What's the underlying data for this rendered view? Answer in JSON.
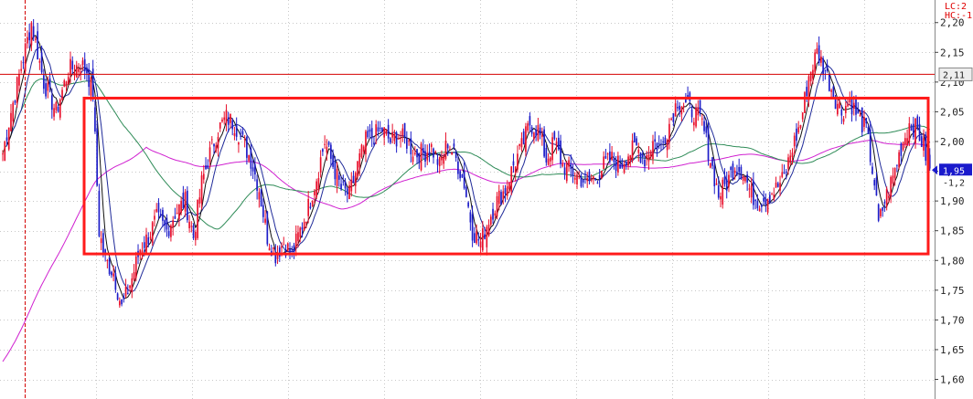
{
  "chart_data": {
    "type": "candlestick",
    "title": "",
    "legend": {
      "lc_text": "LC:2",
      "hc_text": "HC:-1"
    },
    "y_axis": {
      "ticks": [
        {
          "label": "1,60",
          "value": 1.6
        },
        {
          "label": "1,65",
          "value": 1.65
        },
        {
          "label": "1,70",
          "value": 1.7
        },
        {
          "label": "1,75",
          "value": 1.75
        },
        {
          "label": "1,80",
          "value": 1.8
        },
        {
          "label": "1,85",
          "value": 1.85
        },
        {
          "label": "1,90",
          "value": 1.9
        },
        {
          "label": "1,95",
          "value": 1.95
        },
        {
          "label": "2,00",
          "value": 2.0
        },
        {
          "label": "2,05",
          "value": 2.05
        },
        {
          "label": "2,10",
          "value": 2.1
        },
        {
          "label": "2,15",
          "value": 2.15
        },
        {
          "label": "2,20",
          "value": 2.2
        }
      ],
      "ylim": [
        1.567,
        2.238
      ],
      "grid": true
    },
    "reference_line": {
      "value": 2.113,
      "label": "2,11",
      "color": "#d40000"
    },
    "current_price": {
      "value": 1.952,
      "label": "1,95",
      "sub_label": "-1,2",
      "color": "#1a1acc"
    },
    "range_box": {
      "high": 2.073,
      "low": 1.811,
      "color": "#ff1a1a"
    },
    "colors": {
      "up": "#e8102c",
      "down": "#1c1cc8",
      "ma5": "#111111",
      "ma10": "#1f2a99",
      "ma60": "#2e8b57",
      "ma120": "#d020d0",
      "grid": "#c8c8c8"
    },
    "anchors": [
      [
        0,
        1.98
      ],
      [
        4,
        2.05
      ],
      [
        10,
        2.14
      ],
      [
        14,
        2.2
      ],
      [
        20,
        2.1
      ],
      [
        26,
        2.05
      ],
      [
        32,
        2.12
      ],
      [
        38,
        2.13
      ],
      [
        41,
        2.12
      ],
      [
        44,
        2.08
      ],
      [
        47,
        1.85
      ],
      [
        50,
        1.8
      ],
      [
        54,
        1.78
      ],
      [
        58,
        1.72
      ],
      [
        63,
        1.77
      ],
      [
        67,
        1.82
      ],
      [
        71,
        1.84
      ],
      [
        75,
        1.87
      ],
      [
        80,
        1.85
      ],
      [
        84,
        1.88
      ],
      [
        89,
        1.9
      ],
      [
        93,
        1.84
      ],
      [
        97,
        1.93
      ],
      [
        101,
        1.98
      ],
      [
        105,
        2.02
      ],
      [
        109,
        2.04
      ],
      [
        113,
        2.03
      ],
      [
        117,
        2.0
      ],
      [
        121,
        1.97
      ],
      [
        125,
        1.92
      ],
      [
        129,
        1.84
      ],
      [
        133,
        1.81
      ],
      [
        137,
        1.83
      ],
      [
        141,
        1.81
      ],
      [
        145,
        1.85
      ],
      [
        149,
        1.89
      ],
      [
        153,
        1.94
      ],
      [
        157,
        2.0
      ],
      [
        161,
        1.96
      ],
      [
        165,
        1.92
      ],
      [
        169,
        1.91
      ],
      [
        173,
        1.96
      ],
      [
        177,
        2.0
      ],
      [
        181,
        2.01
      ],
      [
        185,
        2.02
      ],
      [
        189,
        2.0
      ],
      [
        193,
        2.01
      ],
      [
        197,
        2.0
      ],
      [
        201,
        1.98
      ],
      [
        205,
        1.98
      ],
      [
        209,
        1.99
      ],
      [
        213,
        1.96
      ],
      [
        217,
        2.0
      ],
      [
        221,
        1.97
      ],
      [
        225,
        1.93
      ],
      [
        229,
        1.85
      ],
      [
        233,
        1.83
      ],
      [
        237,
        1.87
      ],
      [
        241,
        1.9
      ],
      [
        245,
        1.92
      ],
      [
        249,
        1.96
      ],
      [
        253,
        1.99
      ],
      [
        257,
        2.03
      ],
      [
        261,
        2.02
      ],
      [
        265,
        1.97
      ],
      [
        269,
        2.0
      ],
      [
        273,
        1.96
      ],
      [
        277,
        1.95
      ],
      [
        281,
        1.94
      ],
      [
        285,
        1.93
      ],
      [
        289,
        1.94
      ],
      [
        293,
        1.96
      ],
      [
        297,
        1.97
      ],
      [
        301,
        1.96
      ],
      [
        305,
        1.98
      ],
      [
        309,
        1.99
      ],
      [
        313,
        1.97
      ],
      [
        317,
        2.0
      ],
      [
        321,
        1.99
      ],
      [
        325,
        2.03
      ],
      [
        329,
        2.07
      ],
      [
        333,
        2.06
      ],
      [
        337,
        2.05
      ],
      [
        341,
        2.03
      ],
      [
        345,
        1.97
      ],
      [
        349,
        1.91
      ],
      [
        353,
        1.93
      ],
      [
        357,
        1.96
      ],
      [
        361,
        1.95
      ],
      [
        365,
        1.91
      ],
      [
        369,
        1.9
      ],
      [
        373,
        1.91
      ],
      [
        377,
        1.92
      ],
      [
        381,
        1.94
      ],
      [
        385,
        1.99
      ],
      [
        389,
        2.03
      ],
      [
        393,
        2.11
      ],
      [
        397,
        2.15
      ],
      [
        401,
        2.12
      ],
      [
        405,
        2.08
      ],
      [
        409,
        2.05
      ],
      [
        413,
        2.07
      ],
      [
        417,
        2.04
      ],
      [
        421,
        2.02
      ],
      [
        425,
        1.93
      ],
      [
        427,
        1.86
      ],
      [
        430,
        1.9
      ],
      [
        434,
        1.94
      ],
      [
        438,
        1.99
      ],
      [
        442,
        2.03
      ],
      [
        446,
        2.02
      ],
      [
        449,
        1.99
      ],
      [
        452,
        1.95
      ]
    ],
    "n_candles": 453
  }
}
